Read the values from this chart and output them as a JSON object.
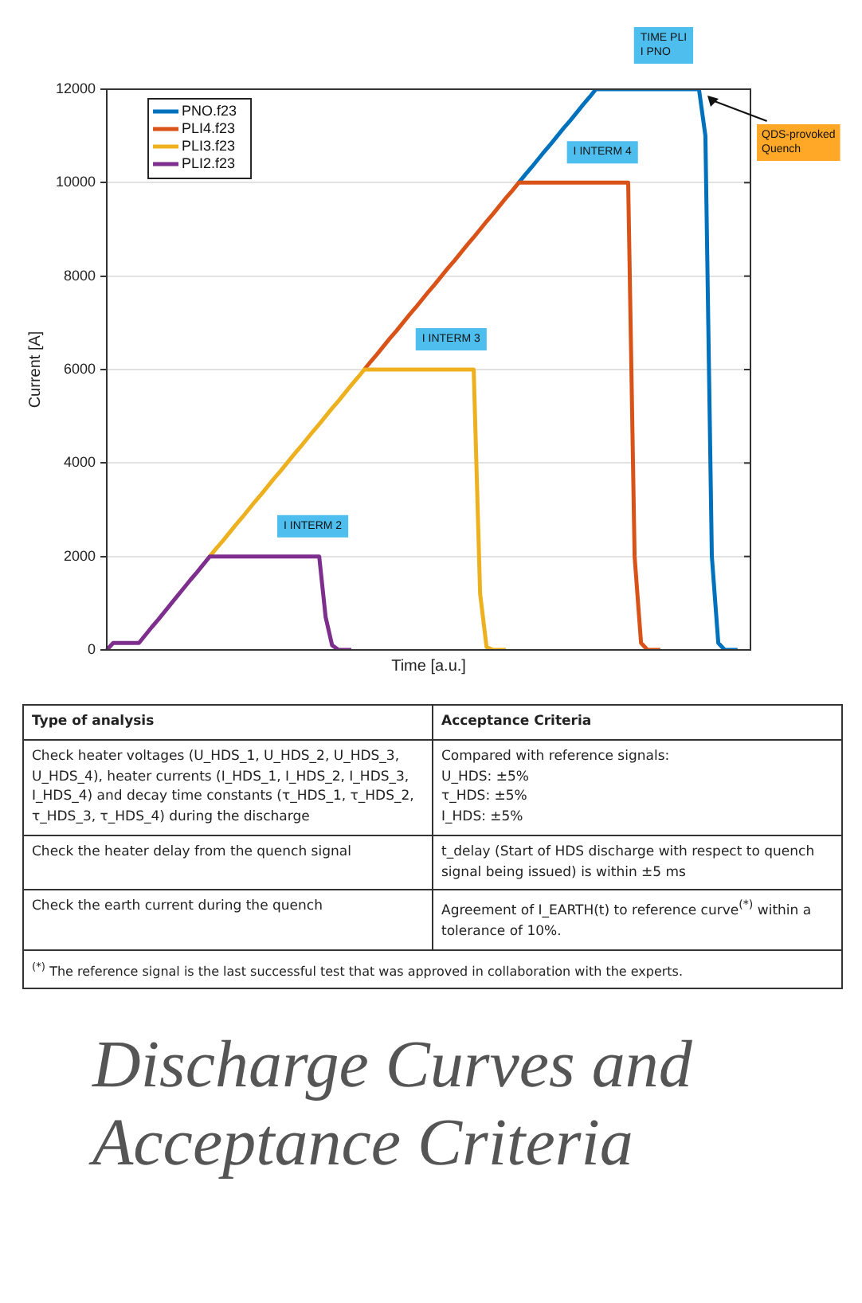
{
  "chart_data": {
    "type": "line",
    "title": "Discharge Curves and Acceptance Criteria",
    "xlabel": "Time [a.u.]",
    "ylabel": "Current [A]",
    "categories": [
      null,
      null,
      null,
      null,
      null,
      null,
      null,
      null,
      null,
      null,
      null,
      null,
      null,
      null,
      null,
      null,
      null,
      null,
      null,
      null,
      null,
      null,
      null,
      null,
      null,
      null,
      null,
      null,
      null,
      null,
      null,
      null,
      null,
      null,
      null,
      null,
      null,
      null,
      null,
      null,
      null,
      null,
      null,
      null,
      null,
      null,
      null,
      null,
      null,
      null,
      null,
      null,
      null,
      null,
      null,
      null,
      null,
      null,
      null,
      null,
      null,
      null,
      null,
      null,
      null,
      null,
      null,
      null,
      null,
      null,
      null,
      null,
      null,
      null,
      null,
      null,
      null,
      null,
      null,
      null,
      null,
      null,
      null,
      null,
      null,
      null,
      null,
      null,
      null,
      null,
      null,
      null,
      null,
      null,
      null,
      null,
      null,
      null,
      null,
      null,
      null
    ],
    "series": [
      {
        "name": "PNO.f23",
        "color": "#0072bd",
        "values": [
          null,
          null,
          null,
          null,
          null,
          null,
          null,
          null,
          null,
          null,
          null,
          null,
          null,
          null,
          null,
          null,
          null,
          null,
          null,
          null,
          null,
          null,
          null,
          null,
          null,
          null,
          null,
          null,
          null,
          null,
          null,
          null,
          null,
          null,
          null,
          null,
          null,
          null,
          null,
          null,
          null,
          null,
          null,
          null,
          null,
          null,
          null,
          null,
          null,
          null,
          null,
          null,
          null,
          null,
          null,
          null,
          null,
          null,
          null,
          null,
          null,
          null,
          null,
          null,
          10000,
          10170,
          10330,
          10500,
          10670,
          10830,
          11000,
          11170,
          11330,
          11500,
          11670,
          11830,
          12000,
          12000,
          12000,
          12000,
          12000,
          12000,
          12000,
          12000,
          12000,
          12000,
          12000,
          12000,
          12000,
          12000,
          12000,
          12000,
          12000,
          11000,
          2000,
          150,
          0,
          0,
          0,
          null,
          null
        ]
      },
      {
        "name": "PLI4.f23",
        "color": "#d95319",
        "values": [
          null,
          null,
          null,
          null,
          null,
          null,
          null,
          null,
          null,
          null,
          null,
          null,
          null,
          null,
          null,
          null,
          null,
          null,
          null,
          null,
          null,
          null,
          null,
          null,
          null,
          null,
          null,
          null,
          null,
          null,
          null,
          null,
          null,
          null,
          null,
          null,
          null,
          null,
          null,
          null,
          6000,
          6170,
          6330,
          6500,
          6670,
          6830,
          7000,
          7170,
          7330,
          7500,
          7670,
          7830,
          8000,
          8170,
          8330,
          8500,
          8670,
          8830,
          9000,
          9170,
          9330,
          9500,
          9670,
          9830,
          10000,
          10000,
          10000,
          10000,
          10000,
          10000,
          10000,
          10000,
          10000,
          10000,
          10000,
          10000,
          10000,
          10000,
          10000,
          10000,
          10000,
          10000,
          2000,
          150,
          0,
          0,
          0,
          null,
          null,
          null,
          null,
          null,
          null,
          null,
          null,
          null,
          null,
          null,
          null,
          null,
          null
        ]
      },
      {
        "name": "PLI3.f23",
        "color": "#edb120",
        "values": [
          null,
          null,
          null,
          null,
          null,
          null,
          null,
          null,
          null,
          null,
          null,
          null,
          null,
          null,
          null,
          null,
          2000,
          2170,
          2330,
          2500,
          2670,
          2830,
          3000,
          3170,
          3330,
          3500,
          3670,
          3830,
          4000,
          4170,
          4330,
          4500,
          4670,
          4830,
          5000,
          5170,
          5330,
          5500,
          5670,
          5830,
          6000,
          6000,
          6000,
          6000,
          6000,
          6000,
          6000,
          6000,
          6000,
          6000,
          6000,
          6000,
          6000,
          6000,
          6000,
          6000,
          6000,
          6000,
          1200,
          60,
          0,
          0,
          0,
          null,
          null,
          null,
          null,
          null,
          null,
          null,
          null,
          null,
          null,
          null,
          null,
          null,
          null,
          null,
          null,
          null,
          null,
          null,
          null,
          null,
          null,
          null,
          null,
          null,
          null,
          null,
          null,
          null,
          null,
          null,
          null,
          null,
          null,
          null,
          null,
          null,
          null
        ]
      },
      {
        "name": "PLI2.f23",
        "color": "#7e2f8e",
        "values": [
          0,
          150,
          150,
          150,
          150,
          150,
          320,
          490,
          650,
          820,
          990,
          1160,
          1330,
          1500,
          1660,
          1830,
          2000,
          2000,
          2000,
          2000,
          2000,
          2000,
          2000,
          2000,
          2000,
          2000,
          2000,
          2000,
          2000,
          2000,
          2000,
          2000,
          2000,
          2000,
          700,
          100,
          0,
          0,
          0,
          null,
          null,
          null,
          null,
          null,
          null,
          null,
          null,
          null,
          null,
          null,
          null,
          null,
          null,
          null,
          null,
          null,
          null,
          null,
          null,
          null,
          null,
          null,
          null,
          null,
          null,
          null,
          null,
          null,
          null,
          null,
          null,
          null,
          null,
          null,
          null,
          null,
          null,
          null,
          null,
          null,
          null,
          null,
          null,
          null,
          null,
          null,
          null,
          null,
          null,
          null,
          null,
          null,
          null,
          null,
          null,
          null,
          null,
          null,
          null,
          null,
          null
        ]
      }
    ],
    "ylim": [
      0,
      12000
    ],
    "yticks": [
      0,
      2000,
      4000,
      6000,
      8000,
      10000,
      12000
    ],
    "grid": "y",
    "legend": "top left",
    "tick_labels": "y",
    "marker": "none",
    "line_style": "solid",
    "annotations": [
      {
        "text": "TIME PLI\nI PNO",
        "y": 12000
      },
      {
        "text": "I INTERM 4",
        "y": 10000
      },
      {
        "text": "I INTERM 3",
        "y": 6000
      },
      {
        "text": "I INTERM 2",
        "y": 2000
      },
      "QDS-provoked\nQuench",
      "Type of analysis",
      "Acceptance Criteria",
      "Check heater voltages (U_HDS_1, U_HDS_2, U_HDS_3, U_HDS_4), heater currents (I_HDS_1, I_HDS_2, I_HDS_3, I_HDS_4) and decay time constants (τ_HDS_1, τ_HDS_2, τ_HDS_3, τ_HDS_4) during the discharge",
      "Compared with reference signals:\nU_HDS: ±5%\nτ_HDS: ±5%\nI_HDS: ±5%",
      "Check the heater delay from the quench signal",
      "t_delay (Start of HDS discharge with respect to quench signal being issued) is within ±5 ms",
      "Check the earth current during the quench",
      "Agreement of I_EARTH(t) to reference curve$^{(*)}$ within a tolerance of 10%.",
      "$^{(*)}$ The reference signal is the last successful test that was approved in collaboration with the experts."
    ]
  }
}
